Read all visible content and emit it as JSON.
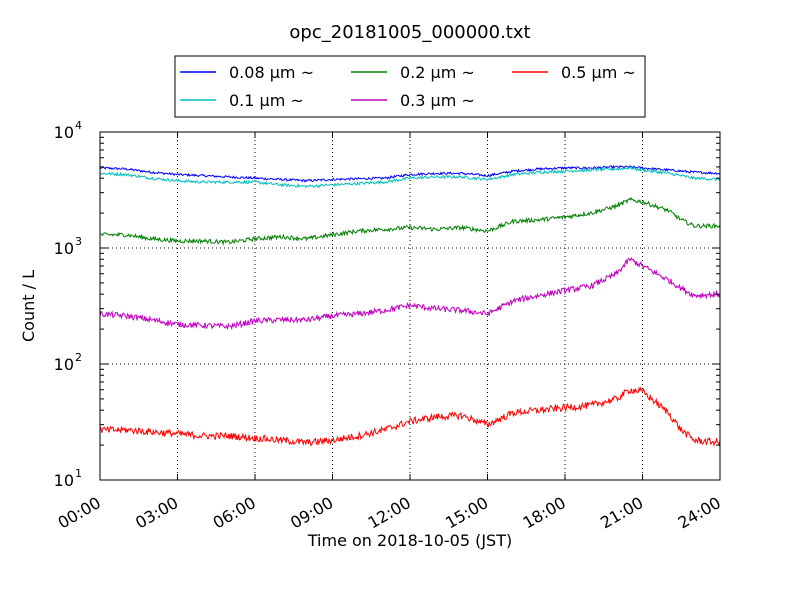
{
  "chart_data": {
    "type": "line",
    "title": "opc_20181005_000000.txt",
    "xlabel": "Time on 2018-10-05 (JST)",
    "ylabel": "Count / L",
    "y_scale": "log",
    "ylim": [
      10,
      10000
    ],
    "xlim": [
      "00:00",
      "24:00"
    ],
    "grid": true,
    "legend_position": "top-center",
    "x_ticks": [
      "00:00",
      "03:00",
      "06:00",
      "09:00",
      "12:00",
      "15:00",
      "18:00",
      "21:00",
      "24:00"
    ],
    "y_ticks": [
      {
        "base": "10",
        "exp": "1"
      },
      {
        "base": "10",
        "exp": "2"
      },
      {
        "base": "10",
        "exp": "3"
      },
      {
        "base": "10",
        "exp": "4"
      }
    ],
    "x_hours": [
      0,
      1,
      2,
      3,
      4,
      5,
      6,
      7,
      8,
      9,
      10,
      11,
      12,
      13,
      14,
      15,
      16,
      17,
      18,
      19,
      20,
      20.5,
      21,
      22,
      22.5,
      23,
      24
    ],
    "series": [
      {
        "name": "0.08 μm ~",
        "color": "#0000ff",
        "values": [
          4900,
          4800,
          4500,
          4300,
          4200,
          4100,
          4000,
          3900,
          3800,
          3900,
          3950,
          4000,
          4300,
          4400,
          4400,
          4200,
          4600,
          4800,
          4900,
          4900,
          5000,
          5000,
          4900,
          4700,
          4600,
          4500,
          4400
        ]
      },
      {
        "name": "0.1 μm ~",
        "color": "#00bfbf",
        "values": [
          4400,
          4300,
          4000,
          3800,
          3700,
          3700,
          3700,
          3500,
          3400,
          3500,
          3600,
          3700,
          4000,
          4100,
          4100,
          3900,
          4300,
          4500,
          4600,
          4700,
          4800,
          4900,
          4700,
          4400,
          4200,
          4000,
          3900
        ]
      },
      {
        "name": "0.2 μm ~",
        "color": "#008000",
        "values": [
          1300,
          1300,
          1200,
          1150,
          1150,
          1120,
          1200,
          1250,
          1200,
          1300,
          1400,
          1450,
          1500,
          1450,
          1500,
          1400,
          1700,
          1750,
          1850,
          2000,
          2300,
          2600,
          2500,
          2100,
          1750,
          1550,
          1550
        ]
      },
      {
        "name": "0.3 μm ~",
        "color": "#bf00bf",
        "values": [
          270,
          260,
          240,
          220,
          215,
          210,
          235,
          240,
          240,
          260,
          270,
          290,
          320,
          300,
          290,
          270,
          350,
          390,
          430,
          470,
          600,
          800,
          700,
          530,
          450,
          390,
          400
        ]
      },
      {
        "name": "0.5 μm ~",
        "color": "#ff0000",
        "values": [
          27,
          27,
          26,
          25,
          24,
          24,
          23,
          22,
          21,
          22,
          24,
          27,
          32,
          35,
          36,
          30,
          38,
          40,
          42,
          44,
          50,
          60,
          58,
          38,
          27,
          22,
          21
        ]
      }
    ]
  }
}
